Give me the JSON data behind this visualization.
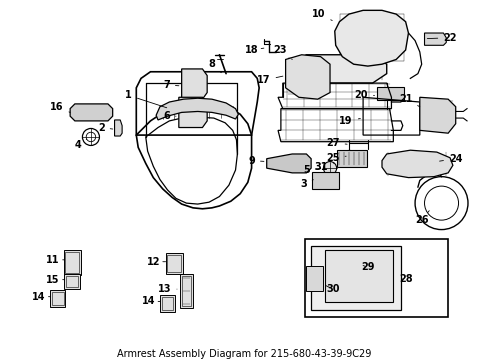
{
  "title": "Armrest Assembly Diagram for 215-680-43-39-9C29",
  "bg_color": "#ffffff",
  "fig_width": 4.89,
  "fig_height": 3.6,
  "dpi": 100,
  "line_color": "#000000",
  "font_size": 7,
  "font_size_title": 7
}
